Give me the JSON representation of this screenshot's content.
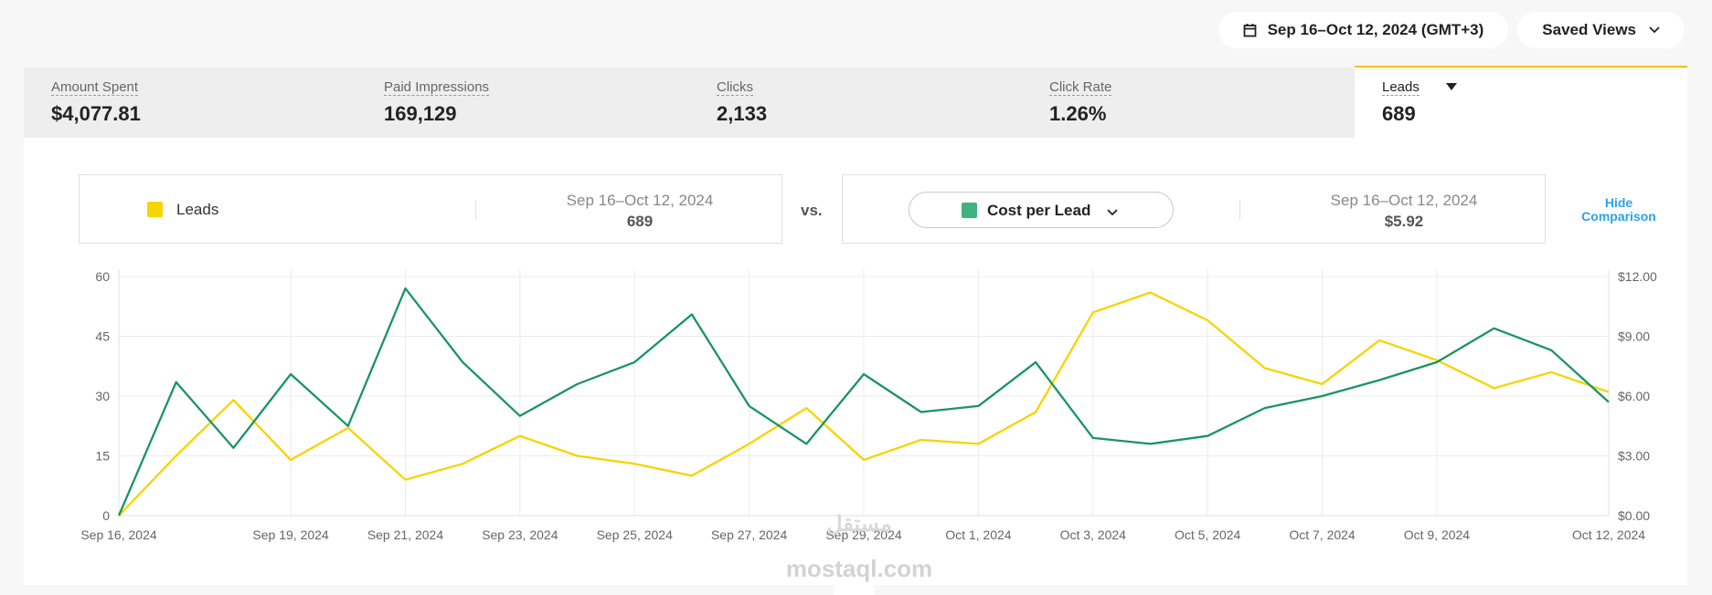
{
  "header": {
    "date_range_label": "Sep 16–Oct 12, 2024 (GMT+3)",
    "saved_views_label": "Saved Views"
  },
  "metrics": [
    {
      "label": "Amount Spent",
      "value": "$4,077.81"
    },
    {
      "label": "Paid Impressions",
      "value": "169,129"
    },
    {
      "label": "Clicks",
      "value": "2,133"
    },
    {
      "label": "Click Rate",
      "value": "1.26%"
    },
    {
      "label": "Leads",
      "value": "689"
    }
  ],
  "comparison": {
    "primary": {
      "label": "Leads",
      "date_range": "Sep 16–Oct 12, 2024",
      "value": "689",
      "color": "#f6d400"
    },
    "vs_label": "vs.",
    "secondary": {
      "label": "Cost per Lead",
      "date_range": "Sep 16–Oct 12, 2024",
      "value": "$5.92",
      "color": "#3fb27f"
    },
    "hide_label_line1": "Hide",
    "hide_label_line2": "Comparison"
  },
  "chart_data": {
    "type": "line",
    "x": [
      "Sep 16, 2024",
      "Sep 17, 2024",
      "Sep 18, 2024",
      "Sep 19, 2024",
      "Sep 20, 2024",
      "Sep 21, 2024",
      "Sep 22, 2024",
      "Sep 23, 2024",
      "Sep 24, 2024",
      "Sep 25, 2024",
      "Sep 26, 2024",
      "Sep 27, 2024",
      "Sep 28, 2024",
      "Sep 29, 2024",
      "Sep 30, 2024",
      "Oct 1, 2024",
      "Oct 2, 2024",
      "Oct 3, 2024",
      "Oct 4, 2024",
      "Oct 5, 2024",
      "Oct 6, 2024",
      "Oct 7, 2024",
      "Oct 8, 2024",
      "Oct 9, 2024",
      "Oct 10, 2024",
      "Oct 11, 2024",
      "Oct 12, 2024"
    ],
    "x_tick_labels": [
      "Sep 16, 2024",
      "Sep 19, 2024",
      "Sep 21, 2024",
      "Sep 23, 2024",
      "Sep 25, 2024",
      "Sep 27, 2024",
      "Sep 29, 2024",
      "Oct 1, 2024",
      "Oct 3, 2024",
      "Oct 5, 2024",
      "Oct 7, 2024",
      "Oct 9, 2024",
      "Oct 12, 2024"
    ],
    "x_tick_indices": [
      0,
      3,
      5,
      7,
      9,
      11,
      13,
      15,
      17,
      19,
      21,
      23,
      26
    ],
    "y_left": {
      "range": [
        0,
        60
      ],
      "ticks": [
        "0",
        "15",
        "30",
        "45",
        "60"
      ]
    },
    "y_right": {
      "range": [
        0,
        12
      ],
      "ticks": [
        "$0.00",
        "$3.00",
        "$6.00",
        "$9.00",
        "$12.00"
      ]
    },
    "series": [
      {
        "name": "Leads",
        "axis": "left",
        "color": "#f6d400",
        "values": [
          0,
          15,
          29,
          14,
          22,
          9,
          13,
          20,
          15,
          13,
          10,
          18,
          27,
          14,
          19,
          18,
          26,
          51,
          56,
          49,
          37,
          33,
          44,
          39,
          32,
          36,
          31
        ]
      },
      {
        "name": "Cost per Lead",
        "axis": "right",
        "color": "#1a9463",
        "values": [
          0,
          6.7,
          3.4,
          7.1,
          4.5,
          11.4,
          7.7,
          5.0,
          6.6,
          7.7,
          10.1,
          5.5,
          3.6,
          7.1,
          5.2,
          5.5,
          7.7,
          3.9,
          3.6,
          4.0,
          5.4,
          6.0,
          6.8,
          7.7,
          9.4,
          8.3,
          5.7
        ]
      }
    ]
  },
  "watermark": {
    "line1": "مستقل",
    "line2": "mostaql.com"
  }
}
